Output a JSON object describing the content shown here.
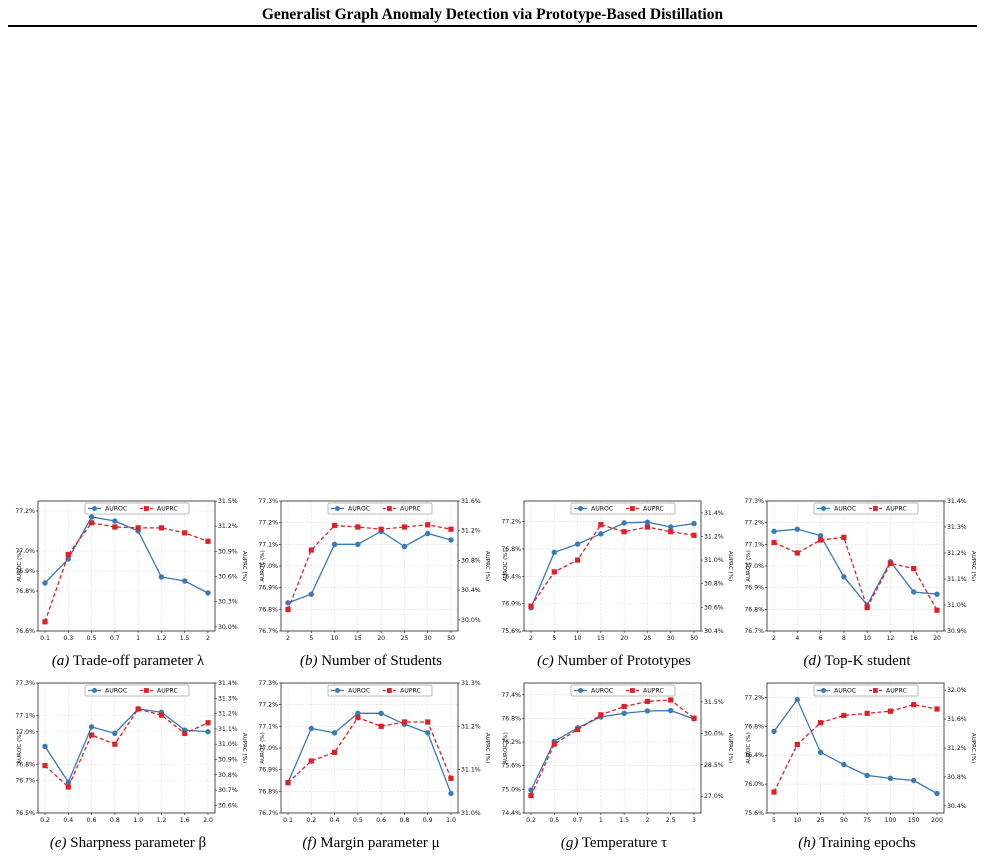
{
  "header": {
    "title": "Generalist Graph Anomaly Detection via Prototype-Based Distillation"
  },
  "colors": {
    "auroc": "#3a7ab7",
    "auprc": "#e01f26"
  },
  "chart_data": [
    {
      "type": "line",
      "caption_label": "(a)",
      "caption_text": "Trade-off parameter λ",
      "categories": [
        "0.1",
        "0.3",
        "0.5",
        "0.7",
        "1",
        "1.2",
        "1.5",
        "2"
      ],
      "ylabel_left": "AUROC (%)",
      "ylabel_right": "AUPRC (%)",
      "yticks_left": [
        "76.6%",
        "76.8%",
        "76.9%",
        "77.0%",
        "77.2%"
      ],
      "ylim_left": [
        76.6,
        77.25
      ],
      "yticks_right": [
        "30.0%",
        "30.3%",
        "30.6%",
        "30.9%",
        "31.2%",
        "31.5%"
      ],
      "ylim_right": [
        29.95,
        31.5
      ],
      "series": [
        {
          "name": "AUROC",
          "axis": "left",
          "values": [
            76.84,
            76.96,
            77.17,
            77.15,
            77.1,
            76.87,
            76.85,
            76.79
          ]
        },
        {
          "name": "AUPRC",
          "axis": "right",
          "values": [
            30.06,
            30.86,
            31.24,
            31.19,
            31.18,
            31.18,
            31.12,
            31.02
          ]
        }
      ],
      "legend": "top-center"
    },
    {
      "type": "line",
      "caption_label": "(b)",
      "caption_text": "Number of Students",
      "categories": [
        "2",
        "5",
        "10",
        "15",
        "20",
        "25",
        "30",
        "50"
      ],
      "ylabel_left": "AUROC (%)",
      "ylabel_right": "AUPRC (%)",
      "yticks_left": [
        "76.7%",
        "76.8%",
        "76.9%",
        "77.0%",
        "77.1%",
        "77.2%",
        "77.3%"
      ],
      "ylim_left": [
        76.7,
        77.3
      ],
      "yticks_right": [
        "30.0%",
        "30.4%",
        "30.8%",
        "31.2%",
        "31.6%"
      ],
      "ylim_right": [
        29.85,
        31.6
      ],
      "series": [
        {
          "name": "AUROC",
          "axis": "left",
          "values": [
            76.83,
            76.87,
            77.1,
            77.1,
            77.16,
            77.09,
            77.15,
            77.12
          ]
        },
        {
          "name": "AUPRC",
          "axis": "right",
          "values": [
            30.14,
            30.94,
            31.27,
            31.25,
            31.22,
            31.25,
            31.28,
            31.22
          ]
        }
      ],
      "legend": "top-center"
    },
    {
      "type": "line",
      "caption_label": "(c)",
      "caption_text": "Number of Prototypes",
      "categories": [
        "2",
        "5",
        "10",
        "15",
        "20",
        "25",
        "30",
        "50"
      ],
      "ylabel_left": "AUROC (%)",
      "ylabel_right": "AUPRC (%)",
      "yticks_left": [
        "75.6%",
        "76.0%",
        "76.4%",
        "76.8%",
        "77.2%"
      ],
      "ylim_left": [
        75.6,
        77.5
      ],
      "yticks_right": [
        "30.4%",
        "30.6%",
        "30.8%",
        "31.0%",
        "31.2%",
        "31.4%"
      ],
      "ylim_right": [
        30.4,
        31.5
      ],
      "series": [
        {
          "name": "AUROC",
          "axis": "left",
          "values": [
            75.94,
            76.75,
            76.87,
            77.02,
            77.18,
            77.19,
            77.12,
            77.17
          ]
        },
        {
          "name": "AUPRC",
          "axis": "right",
          "values": [
            30.61,
            30.9,
            31.0,
            31.3,
            31.24,
            31.28,
            31.24,
            31.21
          ]
        }
      ],
      "legend": "top-center"
    },
    {
      "type": "line",
      "caption_label": "(d)",
      "caption_text": "Top-K student",
      "categories": [
        "2",
        "4",
        "6",
        "8",
        "10",
        "12",
        "16",
        "20"
      ],
      "ylabel_left": "AUROC (%)",
      "ylabel_right": "AUPRC (%)",
      "yticks_left": [
        "76.7%",
        "76.8%",
        "76.9%",
        "77.0%",
        "77.1%",
        "77.2%",
        "77.3%"
      ],
      "ylim_left": [
        76.7,
        77.3
      ],
      "yticks_right": [
        "30.9%",
        "31.0%",
        "31.1%",
        "31.2%",
        "31.3%",
        "31.4%"
      ],
      "ylim_right": [
        30.9,
        31.4
      ],
      "series": [
        {
          "name": "AUROC",
          "axis": "left",
          "values": [
            77.16,
            77.17,
            77.14,
            76.95,
            76.82,
            77.02,
            76.88,
            76.87
          ]
        },
        {
          "name": "AUPRC",
          "axis": "right",
          "values": [
            31.24,
            31.2,
            31.25,
            31.26,
            30.99,
            31.16,
            31.14,
            30.98
          ]
        }
      ],
      "legend": "top-center"
    },
    {
      "type": "line",
      "caption_label": "(e)",
      "caption_text": "Sharpness parameter β",
      "categories": [
        "0.2",
        "0.4",
        "0.6",
        "0.8",
        "1.0",
        "1.2",
        "1.6",
        "2.0"
      ],
      "ylabel_left": "AUROC (%)",
      "ylabel_right": "AUPRC (%)",
      "yticks_left": [
        "76.5%",
        "76.7%",
        "76.8%",
        "77.0%",
        "77.1%",
        "77.3%"
      ],
      "ylim_left": [
        76.5,
        77.3
      ],
      "yticks_right": [
        "30.6%",
        "30.7%",
        "30.8%",
        "30.9%",
        "31.0%",
        "31.1%",
        "31.2%",
        "31.3%",
        "31.4%"
      ],
      "ylim_right": [
        30.55,
        31.4
      ],
      "series": [
        {
          "name": "AUROC",
          "axis": "left",
          "values": [
            76.91,
            76.69,
            77.03,
            76.99,
            77.14,
            77.12,
            77.01,
            77.0
          ]
        },
        {
          "name": "AUPRC",
          "axis": "right",
          "values": [
            30.86,
            30.72,
            31.06,
            31.0,
            31.23,
            31.19,
            31.07,
            31.14
          ]
        }
      ],
      "legend": "top-center"
    },
    {
      "type": "line",
      "caption_label": "(f)",
      "caption_text": "Margin parameter μ",
      "categories": [
        "0.1",
        "0.2",
        "0.4",
        "0.5",
        "0.6",
        "0.8",
        "0.9",
        "1.0"
      ],
      "ylabel_left": "AUROC (%)",
      "ylabel_right": "AUPRC (%)",
      "yticks_left": [
        "76.7%",
        "76.8%",
        "76.9%",
        "77.0%",
        "77.1%",
        "77.2%",
        "77.3%"
      ],
      "ylim_left": [
        76.7,
        77.3
      ],
      "yticks_right": [
        "31.0%",
        "31.1%",
        "31.2%",
        "31.3%"
      ],
      "ylim_right": [
        31.0,
        31.3
      ],
      "series": [
        {
          "name": "AUROC",
          "axis": "left",
          "values": [
            76.84,
            77.09,
            77.07,
            77.16,
            77.16,
            77.11,
            77.07,
            76.79
          ]
        },
        {
          "name": "AUPRC",
          "axis": "right",
          "values": [
            31.07,
            31.12,
            31.14,
            31.22,
            31.2,
            31.21,
            31.21,
            31.08
          ]
        }
      ],
      "legend": "top-center"
    },
    {
      "type": "line",
      "caption_label": "(g)",
      "caption_text": "Temperature τ",
      "categories": [
        "0.2",
        "0.5",
        "0.7",
        "1",
        "1.5",
        "2",
        "2.5",
        "3"
      ],
      "ylabel_left": "AUROC (%)",
      "ylabel_right": "AUPRC (%)",
      "yticks_left": [
        "74.4%",
        "75.0%",
        "75.6%",
        "76.2%",
        "76.8%",
        "77.4%"
      ],
      "ylim_left": [
        74.4,
        77.7
      ],
      "yticks_right": [
        "27.0%",
        "28.5%",
        "30.0%",
        "31.5%"
      ],
      "ylim_right": [
        26.2,
        32.4
      ],
      "series": [
        {
          "name": "AUROC",
          "axis": "left",
          "values": [
            74.98,
            76.22,
            76.56,
            76.84,
            76.93,
            76.99,
            77.0,
            76.79
          ]
        },
        {
          "name": "AUPRC",
          "axis": "right",
          "values": [
            27.03,
            29.49,
            30.18,
            30.88,
            31.28,
            31.52,
            31.59,
            30.72
          ]
        }
      ],
      "legend": "top-center"
    },
    {
      "type": "line",
      "caption_label": "(h)",
      "caption_text": "Training epochs",
      "categories": [
        "5",
        "10",
        "25",
        "50",
        "75",
        "100",
        "150",
        "200"
      ],
      "ylabel_left": "AUROC (%)",
      "ylabel_right": "AUPRC (%)",
      "yticks_left": [
        "75.6%",
        "76.0%",
        "76.4%",
        "76.8%",
        "77.2%"
      ],
      "ylim_left": [
        75.6,
        77.4
      ],
      "yticks_right": [
        "30.4%",
        "30.8%",
        "31.2%",
        "31.6%",
        "32.0%"
      ],
      "ylim_right": [
        30.3,
        32.1
      ],
      "series": [
        {
          "name": "AUROC",
          "axis": "left",
          "values": [
            76.73,
            77.17,
            76.44,
            76.27,
            76.12,
            76.08,
            76.05,
            75.87
          ]
        },
        {
          "name": "AUPRC",
          "axis": "right",
          "values": [
            30.59,
            31.25,
            31.55,
            31.65,
            31.68,
            31.71,
            31.8,
            31.74
          ]
        }
      ],
      "legend": "top-center"
    }
  ]
}
